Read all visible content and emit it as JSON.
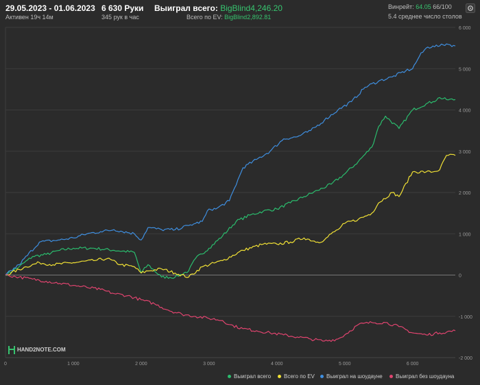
{
  "header": {
    "date_range": "29.05.2023 - 01.06.2023",
    "active": "Активен 19ч 14м",
    "hands": "6 630 Руки",
    "hands_per_hour": "345 рук в час",
    "won_label": "Выиграл всего:",
    "won_value": "BigBlind4,246.20",
    "ev_label": "Всего по EV:",
    "ev_value": "BigBlind2,892.81",
    "winrate_label": "Винрейт:",
    "winrate_value": "64.05",
    "winrate_per": "66/100",
    "avg_tables": "5.4 среднее число столов"
  },
  "logo_text": "HAND2NOTE.COM",
  "icons": {
    "settings": "gear-icon",
    "logo": "hand2note-logo-icon"
  },
  "colors": {
    "total": "#2bbd6e",
    "ev": "#f2e235",
    "showdown": "#3f8fe0",
    "nonshowdown": "#e0446f",
    "background": "#2b2b2b",
    "grid": "#3c3c3c"
  },
  "chart_data": {
    "type": "line",
    "x_ticks": [
      "0",
      "1 000",
      "2 000",
      "3 000",
      "4 000",
      "5 000",
      "6 000"
    ],
    "y_ticks": [
      "-2 000",
      "-1 000",
      "0",
      "1 000",
      "2 000",
      "3 000",
      "4 000",
      "5 000",
      "6 000"
    ],
    "xlim": [
      0,
      6630
    ],
    "ylim": [
      -2000,
      6000
    ],
    "grid": true,
    "legend_position": "bottom-right",
    "series": [
      {
        "name": "Выиграл всего",
        "key": "total",
        "x": [
          0,
          200,
          400,
          600,
          800,
          1000,
          1300,
          1600,
          1900,
          2000,
          2100,
          2300,
          2500,
          2700,
          2800,
          3000,
          3200,
          3400,
          3600,
          3800,
          4000,
          4200,
          4400,
          4600,
          4800,
          5000,
          5200,
          5400,
          5500,
          5600,
          5800,
          6000,
          6200,
          6300,
          6400,
          6500,
          6630
        ],
        "y": [
          0,
          200,
          450,
          500,
          600,
          650,
          650,
          600,
          550,
          50,
          250,
          -50,
          -50,
          100,
          400,
          650,
          950,
          1300,
          1450,
          1550,
          1600,
          1750,
          1900,
          2050,
          2200,
          2450,
          2750,
          3100,
          3600,
          3850,
          3550,
          4000,
          4150,
          4200,
          4300,
          4250,
          4250
        ]
      },
      {
        "name": "Всего по EV",
        "key": "ev",
        "x": [
          0,
          300,
          500,
          700,
          1000,
          1300,
          1500,
          1700,
          1900,
          2000,
          2100,
          2300,
          2500,
          2700,
          2900,
          3200,
          3500,
          3800,
          4000,
          4200,
          4400,
          4600,
          4700,
          4800,
          4900,
          5000,
          5200,
          5400,
          5500,
          5700,
          5800,
          6000,
          6200,
          6300,
          6400,
          6500,
          6630
        ],
        "y": [
          0,
          200,
          300,
          250,
          300,
          350,
          400,
          250,
          200,
          50,
          100,
          150,
          50,
          -50,
          200,
          350,
          600,
          750,
          750,
          800,
          900,
          800,
          850,
          1000,
          1100,
          1250,
          1350,
          1500,
          1750,
          2000,
          1900,
          2500,
          2500,
          2500,
          2550,
          2900,
          2900
        ]
      },
      {
        "name": "Выиграл на шоудауне",
        "key": "showdown",
        "x": [
          0,
          200,
          500,
          800,
          1000,
          1200,
          1400,
          1600,
          1900,
          2000,
          2100,
          2300,
          2500,
          2700,
          2800,
          2900,
          3000,
          3100,
          3300,
          3500,
          3700,
          3900,
          4100,
          4300,
          4500,
          4700,
          4900,
          5100,
          5300,
          5500,
          5700,
          5900,
          6000,
          6100,
          6200,
          6300,
          6400,
          6500,
          6630
        ],
        "y": [
          0,
          250,
          800,
          850,
          900,
          1000,
          1050,
          1100,
          1000,
          850,
          1150,
          1100,
          1100,
          1200,
          1250,
          1300,
          1600,
          1600,
          1800,
          2600,
          2800,
          3000,
          3300,
          3350,
          3500,
          3750,
          4000,
          4200,
          4550,
          4700,
          4800,
          4950,
          5000,
          5300,
          5500,
          5550,
          5550,
          5600,
          5550
        ]
      },
      {
        "name": "Выиграл без шоудауна",
        "key": "nonshowdown",
        "x": [
          0,
          200,
          400,
          600,
          800,
          1000,
          1200,
          1400,
          1600,
          1800,
          2000,
          2200,
          2400,
          2600,
          2800,
          3000,
          3200,
          3300,
          3500,
          3700,
          3900,
          4100,
          4300,
          4500,
          4700,
          4900,
          5000,
          5200,
          5400,
          5600,
          5800,
          6000,
          6200,
          6400,
          6630
        ],
        "y": [
          0,
          -50,
          -100,
          -150,
          -200,
          -250,
          -300,
          -350,
          -450,
          -500,
          -600,
          -700,
          -850,
          -950,
          -1000,
          -1050,
          -1100,
          -1200,
          -1300,
          -1350,
          -1400,
          -1450,
          -1500,
          -1550,
          -1600,
          -1550,
          -1450,
          -1200,
          -1150,
          -1150,
          -1250,
          -1400,
          -1450,
          -1400,
          -1350
        ]
      }
    ]
  }
}
